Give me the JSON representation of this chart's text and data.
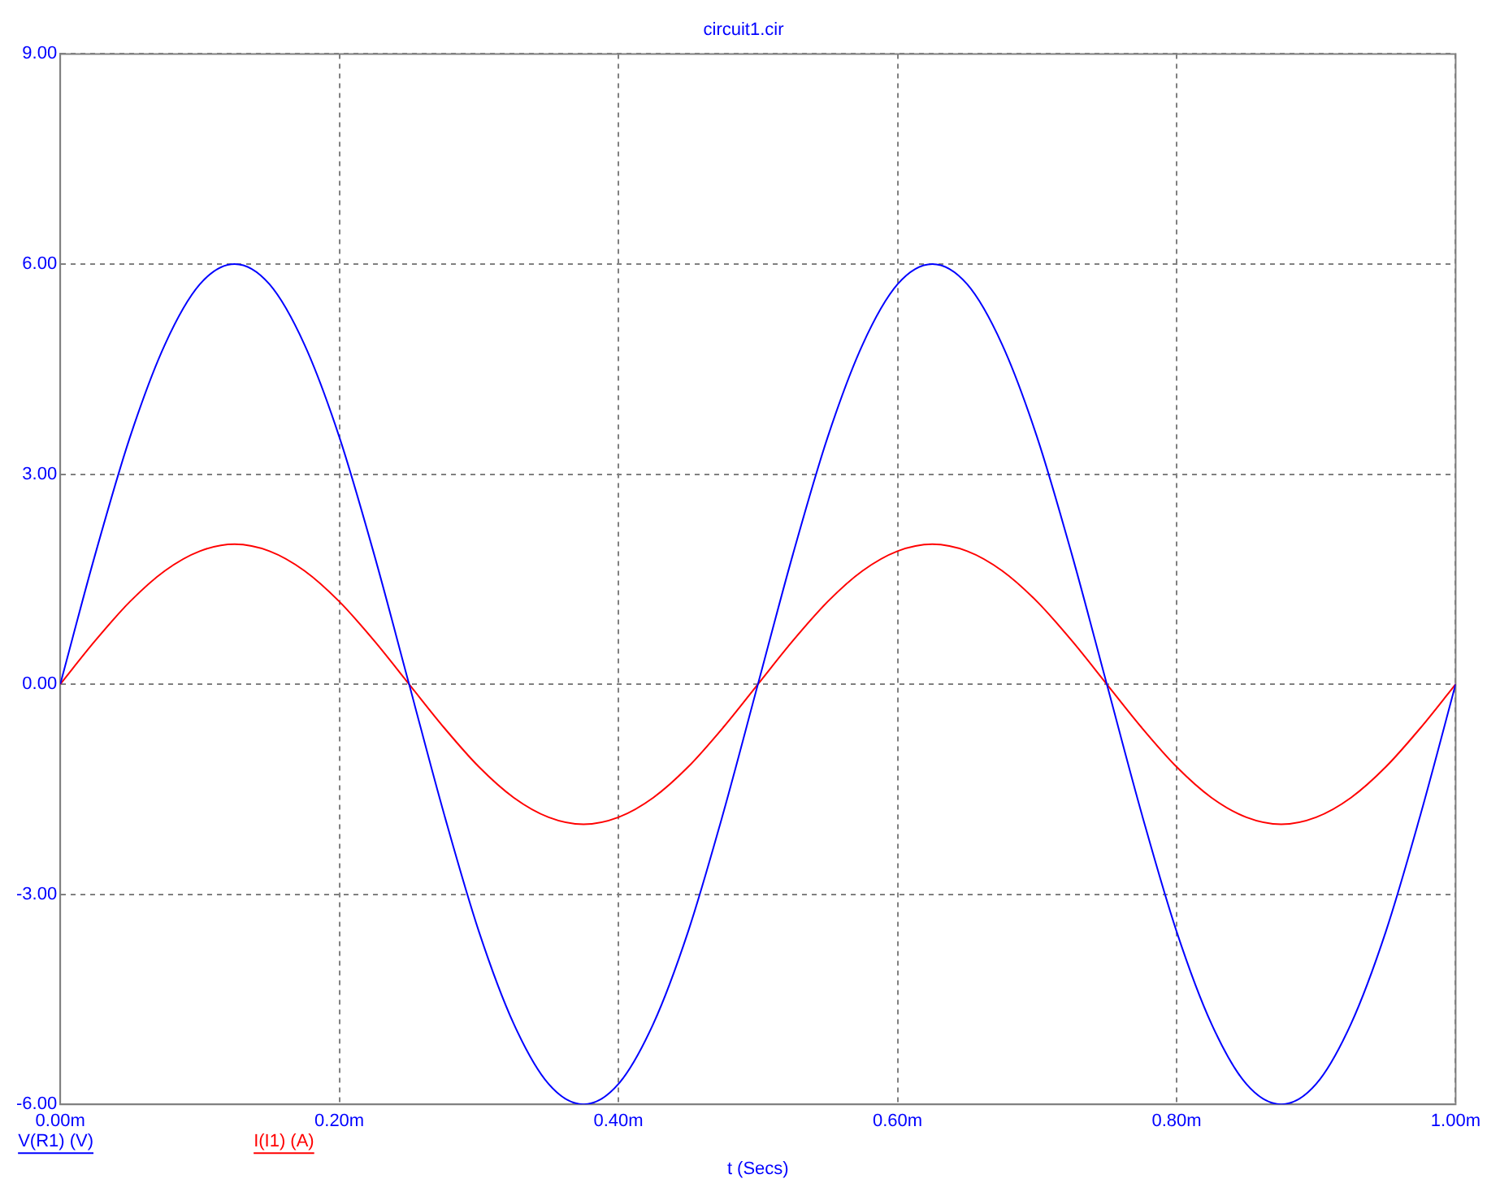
{
  "chart_data": {
    "type": "line",
    "title": "circuit1.cir",
    "xlabel": "t (Secs)",
    "x": [
      0,
      0.025,
      0.05,
      0.075,
      0.1,
      0.125,
      0.15,
      0.175,
      0.2,
      0.225,
      0.25,
      0.275,
      0.3,
      0.325,
      0.35,
      0.375,
      0.4,
      0.425,
      0.45,
      0.475,
      0.5,
      0.525,
      0.55,
      0.575,
      0.6,
      0.625,
      0.65,
      0.675,
      0.7,
      0.725,
      0.75,
      0.775,
      0.8,
      0.825,
      0.85,
      0.875,
      0.9,
      0.925,
      0.95,
      0.975,
      1
    ],
    "series": [
      {
        "name": "V(R1) (V)",
        "color": "#0000ff",
        "values": [
          0,
          1.85,
          3.53,
          4.85,
          5.71,
          6,
          5.71,
          4.85,
          3.53,
          1.85,
          0,
          -1.85,
          -3.53,
          -4.85,
          -5.71,
          -6,
          -5.71,
          -4.85,
          -3.53,
          -1.85,
          0,
          1.85,
          3.53,
          4.85,
          5.71,
          6,
          5.71,
          4.85,
          3.53,
          1.85,
          0,
          -1.85,
          -3.53,
          -4.85,
          -5.71,
          -6,
          -5.71,
          -4.85,
          -3.53,
          -1.85,
          0
        ]
      },
      {
        "name": "I(I1) (A)",
        "color": "#ff0000",
        "values": [
          0,
          0.62,
          1.18,
          1.62,
          1.9,
          2,
          1.9,
          1.62,
          1.18,
          0.62,
          0,
          -0.62,
          -1.18,
          -1.62,
          -1.9,
          -2,
          -1.9,
          -1.62,
          -1.18,
          -0.62,
          0,
          0.62,
          1.18,
          1.62,
          1.9,
          2,
          1.9,
          1.62,
          1.18,
          0.62,
          0,
          -0.62,
          -1.18,
          -1.62,
          -1.9,
          -2,
          -1.9,
          -1.62,
          -1.18,
          -0.62,
          0
        ]
      }
    ],
    "xlim": [
      0,
      1
    ],
    "xticks": [
      {
        "value": 0,
        "label": "0.00m"
      },
      {
        "value": 0.2,
        "label": "0.20m"
      },
      {
        "value": 0.4,
        "label": "0.40m"
      },
      {
        "value": 0.6,
        "label": "0.60m"
      },
      {
        "value": 0.8,
        "label": "0.80m"
      },
      {
        "value": 1,
        "label": "1.00m"
      }
    ],
    "ylim": [
      -6,
      9
    ],
    "yticks": [
      {
        "value": -6,
        "label": "-6.00"
      },
      {
        "value": -3,
        "label": "-3.00"
      },
      {
        "value": 0,
        "label": "0.00"
      },
      {
        "value": 3,
        "label": "3.00"
      },
      {
        "value": 6,
        "label": "6.00"
      },
      {
        "value": 9,
        "label": "9.00"
      }
    ],
    "grid": true,
    "legend": "bottom left",
    "marker": "none",
    "line_style": "solid"
  }
}
